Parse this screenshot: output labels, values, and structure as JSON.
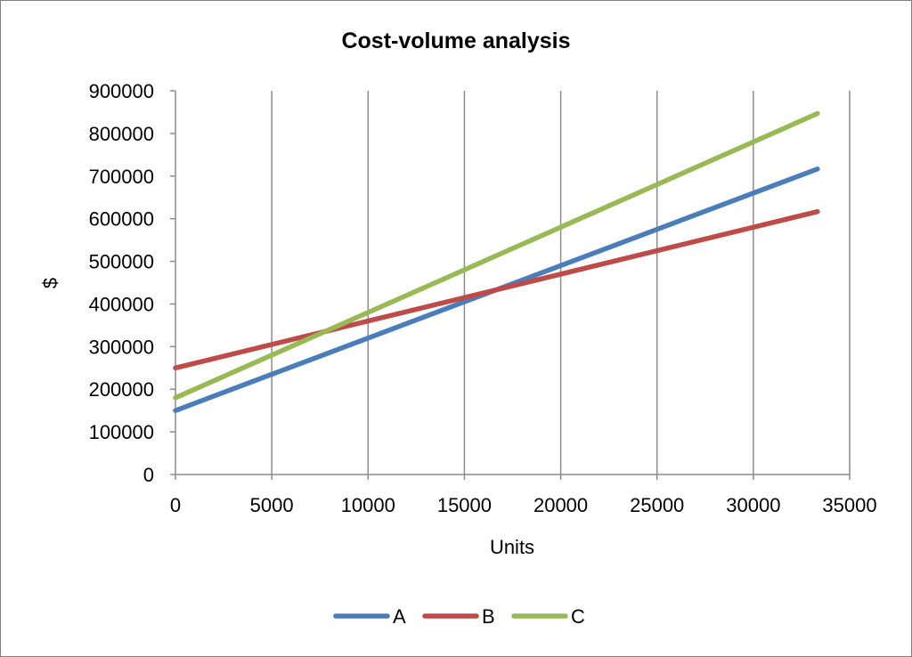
{
  "chart_data": {
    "type": "line",
    "title": "Cost-volume analysis",
    "xlabel": "Units",
    "ylabel": "$",
    "xlim": [
      0,
      35000
    ],
    "ylim": [
      0,
      900000
    ],
    "x_ticks": [
      "0",
      "5000",
      "10000",
      "15000",
      "20000",
      "25000",
      "30000",
      "35000"
    ],
    "y_ticks": [
      "0",
      "100000",
      "200000",
      "300000",
      "400000",
      "500000",
      "600000",
      "700000",
      "800000",
      "900000"
    ],
    "grid": "vertical",
    "legend_position": "bottom",
    "x": [
      0,
      33333
    ],
    "series": [
      {
        "name": "A",
        "color": "#4a7ebb",
        "values": [
          150000,
          716667
        ]
      },
      {
        "name": "B",
        "color": "#be4b48",
        "values": [
          250000,
          616667
        ]
      },
      {
        "name": "C",
        "color": "#98b954",
        "values": [
          180000,
          846667
        ]
      }
    ]
  }
}
